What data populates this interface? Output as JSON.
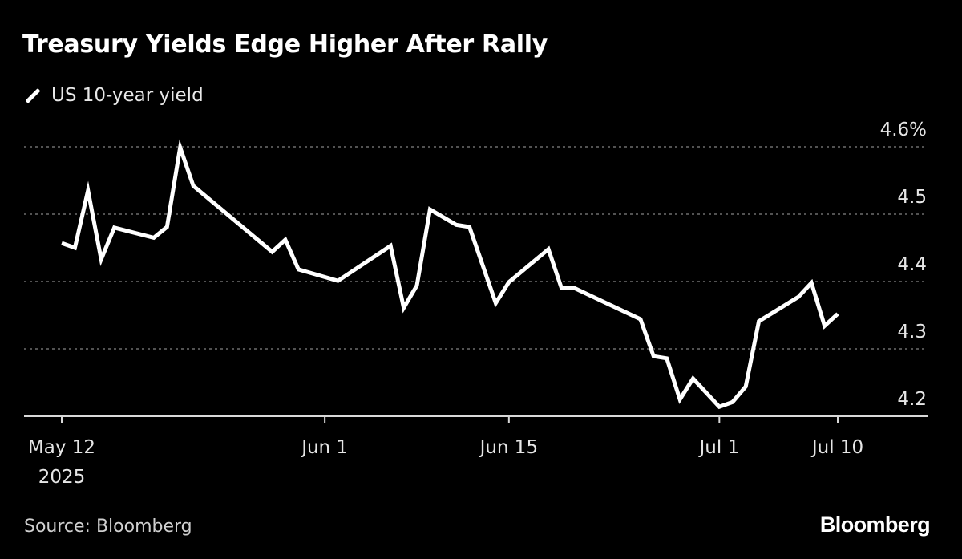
{
  "title": "Treasury Yields Edge Higher After Rally",
  "legend_label": "US 10-year yield",
  "source": "Source: Bloomberg",
  "brand": "Bloomberg",
  "colors": {
    "background": "#000000",
    "line": "#ffffff",
    "grid": "#6e6e6e",
    "text": "#ffffff"
  },
  "chart_data": {
    "type": "line",
    "title": "Treasury Yields Edge Higher After Rally",
    "xlabel": "",
    "ylabel": "",
    "ylim": [
      4.2,
      4.6
    ],
    "yticks": [
      4.2,
      4.3,
      4.4,
      4.5,
      4.6
    ],
    "ytick_labels": [
      "4.2",
      "4.3",
      "4.4",
      "4.5",
      "4.6%"
    ],
    "xtick_labels": [
      {
        "date": "2025-05-12",
        "label": "May 12",
        "sublabel": "2025"
      },
      {
        "date": "2025-06-01",
        "label": "Jun 1"
      },
      {
        "date": "2025-06-15",
        "label": "Jun 15"
      },
      {
        "date": "2025-07-01",
        "label": "Jul 1"
      },
      {
        "date": "2025-07-10",
        "label": "Jul 10"
      }
    ],
    "grid": true,
    "legend_position": "top-left",
    "series": [
      {
        "name": "US 10-year yield",
        "points": [
          [
            "2025-05-12",
            4.457
          ],
          [
            "2025-05-13",
            4.45
          ],
          [
            "2025-05-14",
            4.535
          ],
          [
            "2025-05-15",
            4.433
          ],
          [
            "2025-05-16",
            4.48
          ],
          [
            "2025-05-19",
            4.465
          ],
          [
            "2025-05-20",
            4.481
          ],
          [
            "2025-05-21",
            4.599
          ],
          [
            "2025-05-22",
            4.542
          ],
          [
            "2025-05-28",
            4.444
          ],
          [
            "2025-05-29",
            4.462
          ],
          [
            "2025-05-30",
            4.418
          ],
          [
            "2025-06-02",
            4.401
          ],
          [
            "2025-06-06",
            4.453
          ],
          [
            "2025-06-07",
            4.361
          ],
          [
            "2025-06-08",
            4.394
          ],
          [
            "2025-06-09",
            4.507
          ],
          [
            "2025-06-11",
            4.484
          ],
          [
            "2025-06-12",
            4.481
          ],
          [
            "2025-06-14",
            4.368
          ],
          [
            "2025-06-15",
            4.399
          ],
          [
            "2025-06-18",
            4.448
          ],
          [
            "2025-06-19",
            4.39
          ],
          [
            "2025-06-20",
            4.39
          ],
          [
            "2025-06-25",
            4.344
          ],
          [
            "2025-06-26",
            4.289
          ],
          [
            "2025-06-27",
            4.286
          ],
          [
            "2025-06-28",
            4.225
          ],
          [
            "2025-06-29",
            4.256
          ],
          [
            "2025-07-01",
            4.214
          ],
          [
            "2025-07-02",
            4.221
          ],
          [
            "2025-07-03",
            4.244
          ],
          [
            "2025-07-04",
            4.341
          ],
          [
            "2025-07-07",
            4.377
          ],
          [
            "2025-07-08",
            4.398
          ],
          [
            "2025-07-09",
            4.334
          ],
          [
            "2025-07-10",
            4.352
          ]
        ]
      }
    ]
  }
}
